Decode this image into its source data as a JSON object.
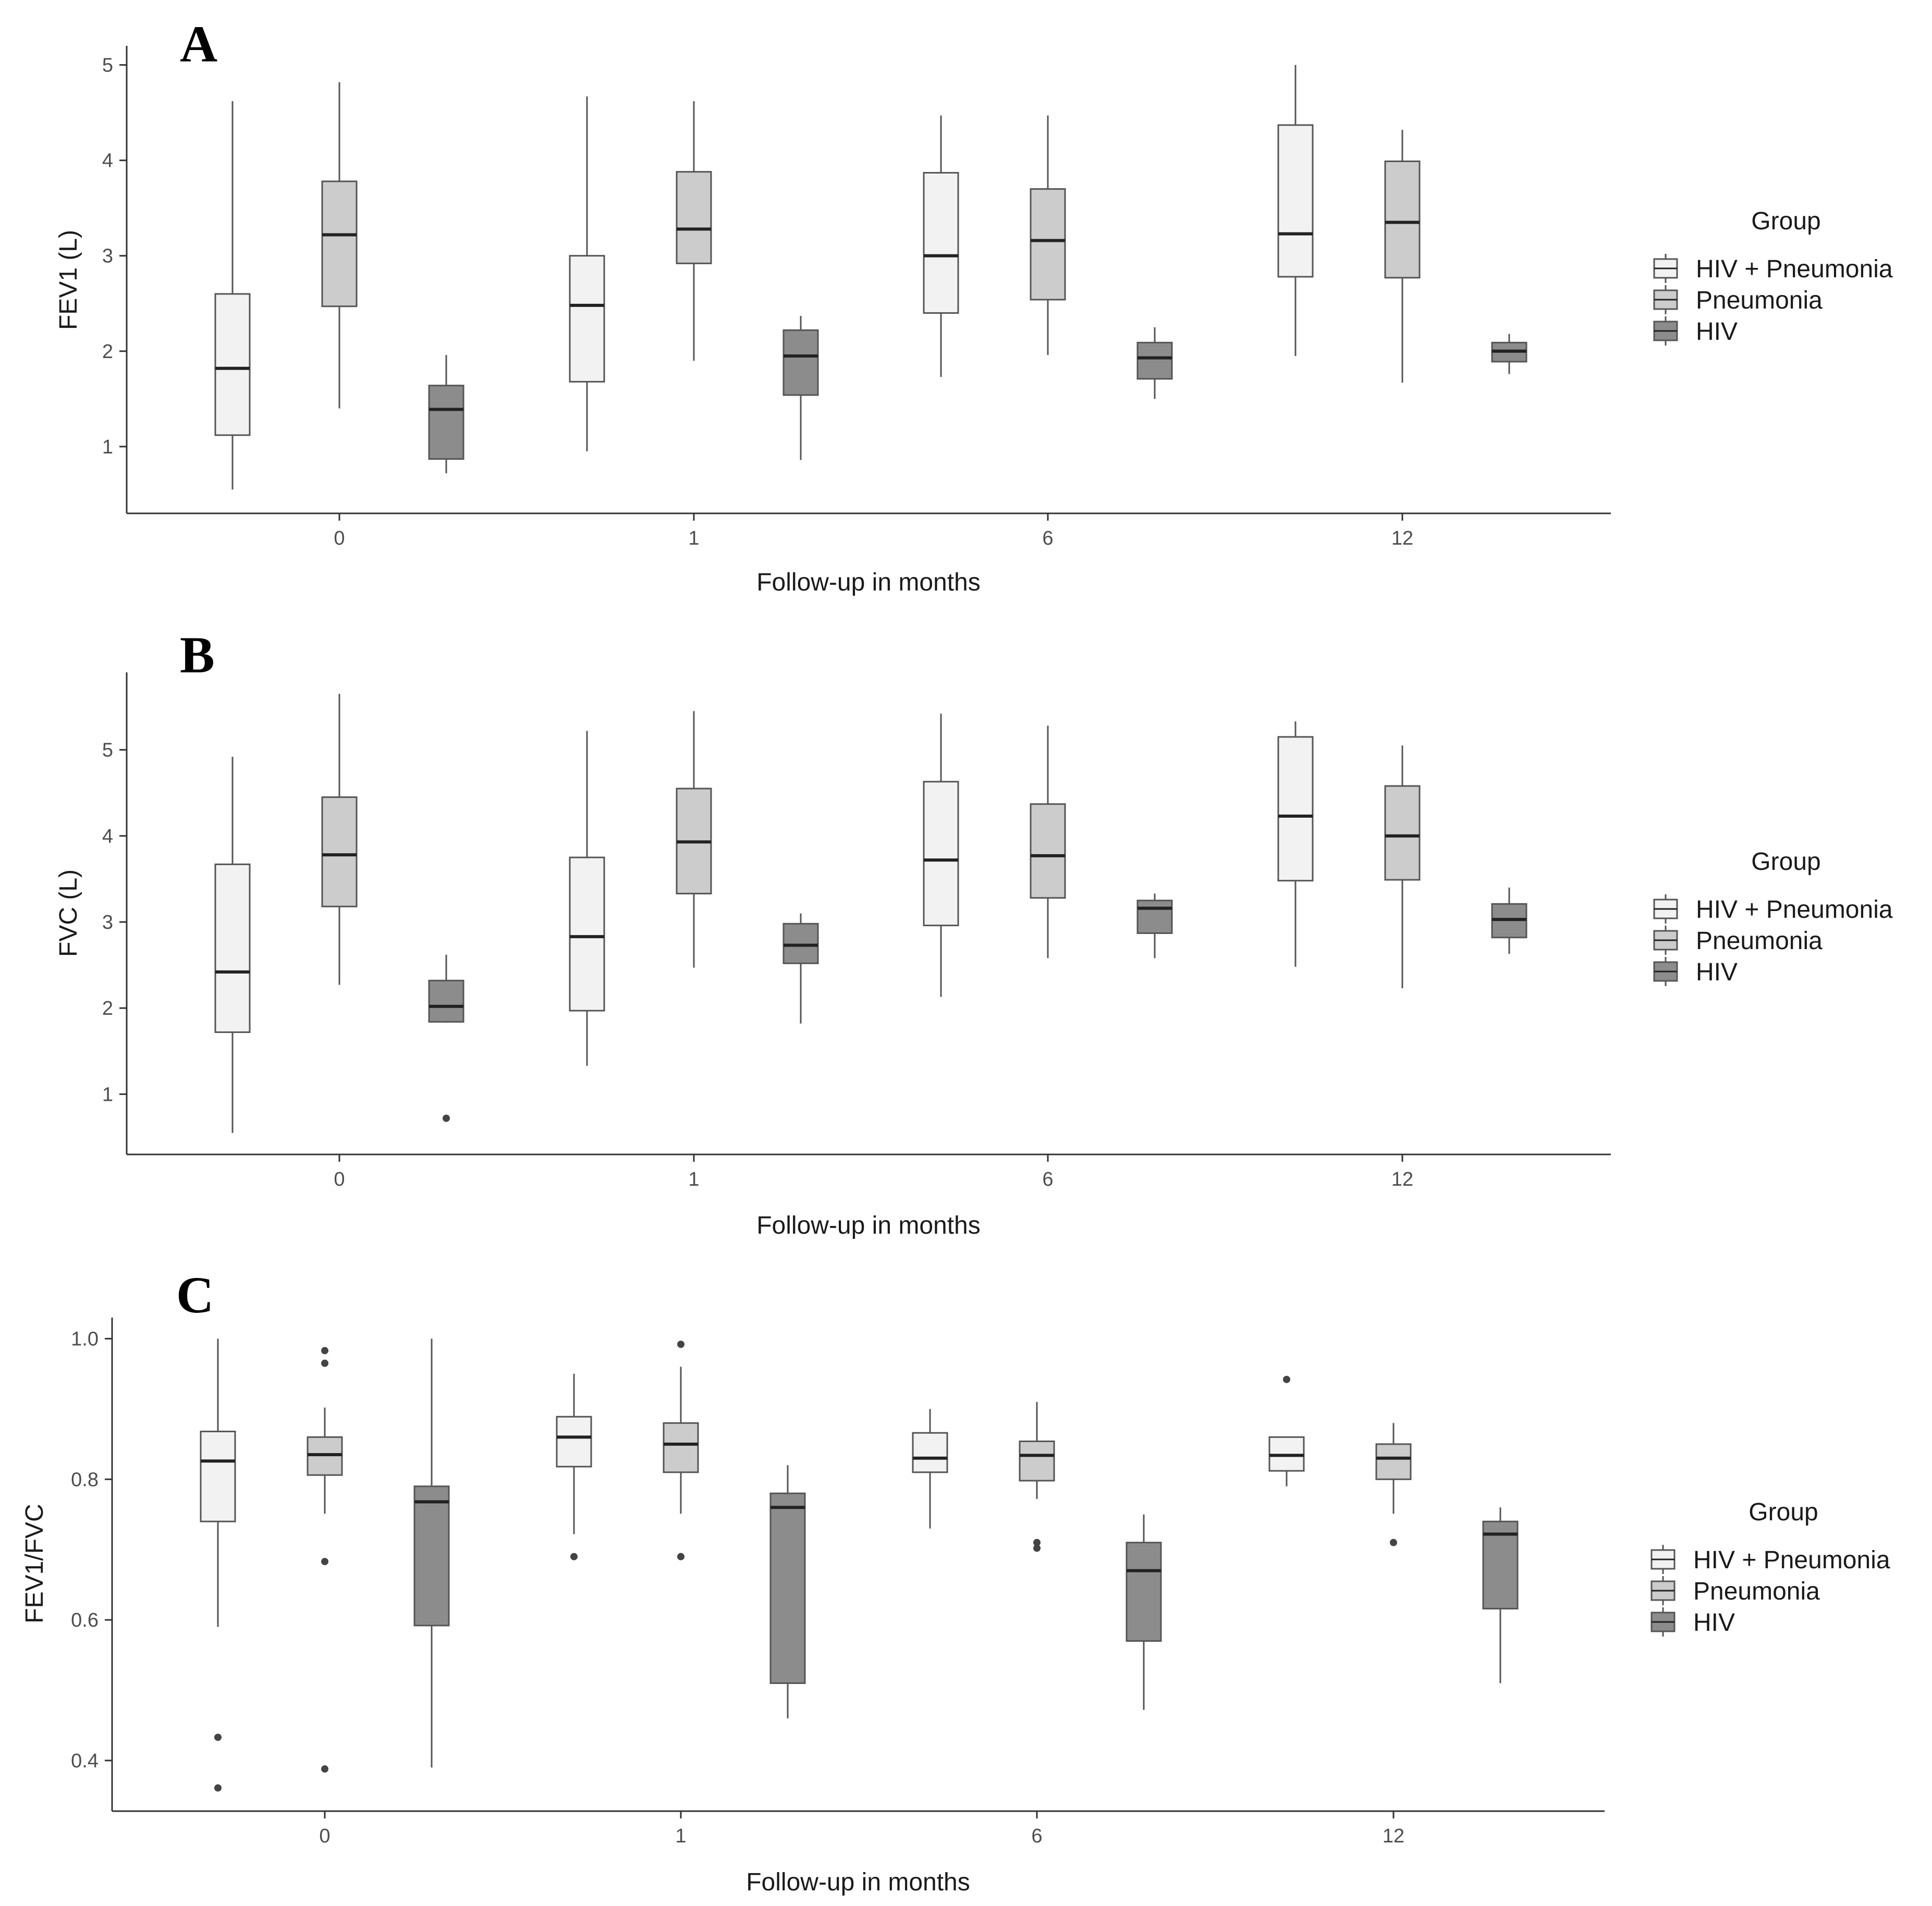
{
  "chart_data": [
    {
      "panel": "A",
      "type": "box",
      "xlabel": "Follow-up in months",
      "ylabel": "FEV1 (L)",
      "categories": [
        "0",
        "1",
        "6",
        "12"
      ],
      "yticks": [
        1,
        2,
        3,
        4,
        5
      ],
      "ylim": [
        0.3,
        5.2
      ],
      "legend": {
        "title": "Group",
        "entries": [
          "HIV + Pneumonia",
          "Pneumonia",
          "HIV"
        ]
      },
      "series": [
        {
          "name": "HIV + Pneumonia",
          "color": "#f2f2f2",
          "boxes": [
            {
              "min": 0.55,
              "q1": 1.12,
              "median": 1.82,
              "q3": 2.6,
              "max": 4.62,
              "outliers": []
            },
            {
              "min": 0.95,
              "q1": 1.68,
              "median": 2.48,
              "q3": 3.0,
              "max": 4.67,
              "outliers": []
            },
            {
              "min": 1.73,
              "q1": 2.4,
              "median": 3.0,
              "q3": 3.87,
              "max": 4.47,
              "outliers": []
            },
            {
              "min": 1.95,
              "q1": 2.78,
              "median": 3.23,
              "q3": 4.37,
              "max": 5.0,
              "outliers": []
            }
          ]
        },
        {
          "name": "Pneumonia",
          "color": "#cccccc",
          "boxes": [
            {
              "min": 1.4,
              "q1": 2.47,
              "median": 3.22,
              "q3": 3.78,
              "max": 4.82,
              "outliers": []
            },
            {
              "min": 1.9,
              "q1": 2.92,
              "median": 3.28,
              "q3": 3.88,
              "max": 4.62,
              "outliers": []
            },
            {
              "min": 1.96,
              "q1": 2.54,
              "median": 3.16,
              "q3": 3.7,
              "max": 4.47,
              "outliers": []
            },
            {
              "min": 1.67,
              "q1": 2.77,
              "median": 3.35,
              "q3": 3.99,
              "max": 4.32,
              "outliers": []
            }
          ]
        },
        {
          "name": "HIV",
          "color": "#8c8c8c",
          "boxes": [
            {
              "min": 0.72,
              "q1": 0.87,
              "median": 1.39,
              "q3": 1.64,
              "max": 1.96,
              "outliers": []
            },
            {
              "min": 0.86,
              "q1": 1.54,
              "median": 1.95,
              "q3": 2.22,
              "max": 2.37,
              "outliers": []
            },
            {
              "min": 1.5,
              "q1": 1.71,
              "median": 1.93,
              "q3": 2.09,
              "max": 2.25,
              "outliers": []
            },
            {
              "min": 1.76,
              "q1": 1.89,
              "median": 2.0,
              "q3": 2.09,
              "max": 2.18,
              "outliers": []
            }
          ]
        }
      ]
    },
    {
      "panel": "B",
      "type": "box",
      "xlabel": "Follow-up in months",
      "ylabel": "FVC (L)",
      "categories": [
        "0",
        "1",
        "6",
        "12"
      ],
      "yticks": [
        1,
        2,
        3,
        4,
        5
      ],
      "ylim": [
        0.3,
        5.9
      ],
      "legend": {
        "title": "Group",
        "entries": [
          "HIV + Pneumonia",
          "Pneumonia",
          "HIV"
        ]
      },
      "series": [
        {
          "name": "HIV + Pneumonia",
          "color": "#f2f2f2",
          "boxes": [
            {
              "min": 0.55,
              "q1": 1.72,
              "median": 2.42,
              "q3": 3.67,
              "max": 4.92,
              "outliers": []
            },
            {
              "min": 1.33,
              "q1": 1.97,
              "median": 2.83,
              "q3": 3.75,
              "max": 5.22,
              "outliers": []
            },
            {
              "min": 2.13,
              "q1": 2.96,
              "median": 3.72,
              "q3": 4.63,
              "max": 5.42,
              "outliers": []
            },
            {
              "min": 2.48,
              "q1": 3.48,
              "median": 4.23,
              "q3": 5.15,
              "max": 5.33,
              "outliers": []
            }
          ]
        },
        {
          "name": "Pneumonia",
          "color": "#cccccc",
          "boxes": [
            {
              "min": 2.27,
              "q1": 3.18,
              "median": 3.78,
              "q3": 4.45,
              "max": 5.65,
              "outliers": []
            },
            {
              "min": 2.47,
              "q1": 3.33,
              "median": 3.93,
              "q3": 4.55,
              "max": 5.45,
              "outliers": []
            },
            {
              "min": 2.58,
              "q1": 3.28,
              "median": 3.77,
              "q3": 4.37,
              "max": 5.28,
              "outliers": []
            },
            {
              "min": 2.23,
              "q1": 3.49,
              "median": 4.0,
              "q3": 4.58,
              "max": 5.05,
              "outliers": []
            }
          ]
        },
        {
          "name": "HIV",
          "color": "#8c8c8c",
          "boxes": [
            {
              "min": 1.83,
              "q1": 1.84,
              "median": 2.02,
              "q3": 2.32,
              "max": 2.62,
              "outliers": [
                0.72
              ]
            },
            {
              "min": 1.82,
              "q1": 2.52,
              "median": 2.73,
              "q3": 2.98,
              "max": 3.1,
              "outliers": []
            },
            {
              "min": 2.58,
              "q1": 2.87,
              "median": 3.16,
              "q3": 3.25,
              "max": 3.33,
              "outliers": []
            },
            {
              "min": 2.63,
              "q1": 2.82,
              "median": 3.03,
              "q3": 3.21,
              "max": 3.4,
              "outliers": []
            }
          ]
        }
      ]
    },
    {
      "panel": "C",
      "type": "box",
      "xlabel": "Follow-up in months",
      "ylabel": "FEV1/FVC",
      "categories": [
        "0",
        "1",
        "6",
        "12"
      ],
      "yticks": [
        "0.4",
        "0.6",
        "0.8",
        "1.0"
      ],
      "ylim": [
        0.328,
        1.03
      ],
      "legend": {
        "title": "Group",
        "entries": [
          "HIV + Pneumonia",
          "Pneumonia",
          "HIV"
        ]
      },
      "series": [
        {
          "name": "HIV + Pneumonia",
          "color": "#f2f2f2",
          "boxes": [
            {
              "min": 0.59,
              "q1": 0.74,
              "median": 0.826,
              "q3": 0.868,
              "max": 1.0,
              "outliers": [
                0.433,
                0.361
              ]
            },
            {
              "min": 0.722,
              "q1": 0.818,
              "median": 0.86,
              "q3": 0.889,
              "max": 0.95,
              "outliers": [
                0.69
              ]
            },
            {
              "min": 0.73,
              "q1": 0.81,
              "median": 0.83,
              "q3": 0.866,
              "max": 0.9,
              "outliers": []
            },
            {
              "min": 0.79,
              "q1": 0.812,
              "median": 0.834,
              "q3": 0.86,
              "max": 0.86,
              "outliers": [
                0.942
              ]
            }
          ]
        },
        {
          "name": "Pneumonia",
          "color": "#cccccc",
          "boxes": [
            {
              "min": 0.751,
              "q1": 0.806,
              "median": 0.835,
              "q3": 0.86,
              "max": 0.902,
              "outliers": [
                0.983,
                0.965,
                0.683,
                0.388
              ]
            },
            {
              "min": 0.751,
              "q1": 0.81,
              "median": 0.85,
              "q3": 0.88,
              "max": 0.96,
              "outliers": [
                0.992,
                0.69
              ]
            },
            {
              "min": 0.772,
              "q1": 0.798,
              "median": 0.834,
              "q3": 0.854,
              "max": 0.91,
              "outliers": [
                0.71,
                0.702
              ]
            },
            {
              "min": 0.751,
              "q1": 0.8,
              "median": 0.83,
              "q3": 0.85,
              "max": 0.88,
              "outliers": [
                0.71
              ]
            }
          ]
        },
        {
          "name": "HIV",
          "color": "#8c8c8c",
          "boxes": [
            {
              "min": 0.39,
              "q1": 0.592,
              "median": 0.768,
              "q3": 0.79,
              "max": 1.0,
              "outliers": []
            },
            {
              "min": 0.46,
              "q1": 0.51,
              "median": 0.76,
              "q3": 0.78,
              "max": 0.82,
              "outliers": []
            },
            {
              "min": 0.472,
              "q1": 0.57,
              "median": 0.67,
              "q3": 0.71,
              "max": 0.75,
              "outliers": []
            },
            {
              "min": 0.51,
              "q1": 0.616,
              "median": 0.722,
              "q3": 0.74,
              "max": 0.76,
              "outliers": []
            }
          ]
        }
      ]
    }
  ]
}
